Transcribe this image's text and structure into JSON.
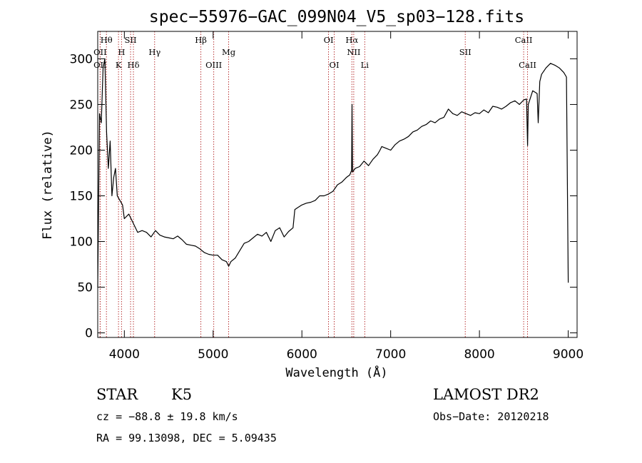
{
  "chart_data": {
    "type": "line",
    "title": "spec−55976−GAC_099N04_V5_sp03−128.fits",
    "xlabel": "Wavelength (Å)",
    "ylabel": "Flux (relative)",
    "xlim": [
      3700,
      9100
    ],
    "ylim": [
      -5,
      330
    ],
    "xticks": [
      "4000",
      "5000",
      "6000",
      "7000",
      "8000",
      "9000"
    ],
    "yticks": [
      "0",
      "50",
      "100",
      "150",
      "200",
      "250",
      "300"
    ],
    "xtick_values": [
      4000,
      5000,
      6000,
      7000,
      8000,
      9000
    ],
    "ytick_values": [
      0,
      50,
      100,
      150,
      200,
      250,
      300
    ],
    "grid": false,
    "series": [
      {
        "x": [
          3700,
          3720,
          3740,
          3760,
          3780,
          3800,
          3820,
          3840,
          3860,
          3880,
          3900,
          3920,
          3950,
          3980,
          4000,
          4050,
          4100,
          4150,
          4200,
          4250,
          4300,
          4350,
          4400,
          4450,
          4500,
          4550,
          4600,
          4650,
          4700,
          4750,
          4800,
          4850,
          4900,
          4950,
          5000,
          5050,
          5100,
          5150,
          5175,
          5200,
          5250,
          5300,
          5350,
          5400,
          5450,
          5500,
          5550,
          5600,
          5650,
          5700,
          5750,
          5800,
          5850,
          5900,
          5920,
          5950,
          6000,
          6050,
          6100,
          6150,
          6200,
          6250,
          6300,
          6350,
          6400,
          6450,
          6500,
          6540,
          6560,
          6565,
          6570,
          6600,
          6650,
          6700,
          6750,
          6800,
          6850,
          6880,
          6900,
          6950,
          7000,
          7050,
          7100,
          7150,
          7200,
          7250,
          7300,
          7350,
          7400,
          7450,
          7500,
          7550,
          7600,
          7650,
          7700,
          7750,
          7800,
          7850,
          7900,
          7950,
          8000,
          8050,
          8100,
          8150,
          8200,
          8250,
          8300,
          8350,
          8400,
          8450,
          8500,
          8530,
          8542,
          8550,
          8600,
          8650,
          8662,
          8680,
          8700,
          8750,
          8800,
          8850,
          8900,
          8950,
          8980,
          9000
        ],
        "y": [
          50,
          240,
          230,
          290,
          300,
          220,
          180,
          210,
          150,
          170,
          180,
          150,
          145,
          140,
          125,
          130,
          120,
          110,
          112,
          110,
          105,
          112,
          107,
          105,
          104,
          103,
          106,
          102,
          97,
          96,
          95,
          92,
          88,
          86,
          85,
          85,
          80,
          78,
          73,
          78,
          82,
          90,
          98,
          100,
          104,
          108,
          106,
          110,
          100,
          112,
          115,
          105,
          111,
          115,
          135,
          137,
          140,
          142,
          143,
          145,
          150,
          150,
          152,
          155,
          162,
          165,
          170,
          173,
          178,
          250,
          176,
          180,
          182,
          188,
          183,
          190,
          195,
          200,
          204,
          202,
          200,
          206,
          210,
          212,
          215,
          220,
          222,
          226,
          228,
          232,
          230,
          234,
          236,
          245,
          240,
          238,
          242,
          240,
          238,
          241,
          240,
          244,
          241,
          248,
          247,
          245,
          248,
          252,
          254,
          250,
          255,
          256,
          205,
          250,
          265,
          262,
          230,
          275,
          283,
          290,
          295,
          293,
          290,
          285,
          280,
          55
        ],
        "color": "#000000"
      }
    ],
    "line_markers": [
      {
        "label": "OΙΙ",
        "wl": 3727,
        "row": 2
      },
      {
        "label": "Hθ",
        "wl": 3798,
        "row": 0
      },
      {
        "label": "OΙΙ",
        "wl": 3727,
        "row": 1
      },
      {
        "label": "H",
        "wl": 3968,
        "row": 1
      },
      {
        "label": "K",
        "wl": 3934,
        "row": 2
      },
      {
        "label": "SΙΙ",
        "wl": 4070,
        "row": 0
      },
      {
        "label": "Hδ",
        "wl": 4102,
        "row": 2
      },
      {
        "label": "Hγ",
        "wl": 4341,
        "row": 1
      },
      {
        "label": "Hβ",
        "wl": 4862,
        "row": 0
      },
      {
        "label": "OΙΙΙ",
        "wl": 5007,
        "row": 2
      },
      {
        "label": "Mg",
        "wl": 5175,
        "row": 1
      },
      {
        "label": "OΙ",
        "wl": 6300,
        "row": 0
      },
      {
        "label": "OΙ",
        "wl": 6364,
        "row": 2
      },
      {
        "label": "Hα",
        "wl": 6563,
        "row": 0
      },
      {
        "label": "NΙΙ",
        "wl": 6584,
        "row": 1
      },
      {
        "label": "Li",
        "wl": 6708,
        "row": 2
      },
      {
        "label": "SΙΙ",
        "wl": 7840,
        "row": 1
      },
      {
        "label": "CaΙΙ",
        "wl": 8498,
        "row": 0
      },
      {
        "label": "CaΙΙ",
        "wl": 8542,
        "row": 2
      }
    ]
  },
  "info": {
    "object_class": "STAR",
    "subclass": "K5",
    "survey": "LAMOST DR2",
    "cz": "cz = −88.8 ± 19.8 km/s",
    "obs_date": "Obs−Date: 20120218",
    "coords": "RA =  99.13098, DEC =   5.09435"
  },
  "colors": {
    "spectrum": "#000000",
    "marker_line": "#b22222",
    "axis": "#000000"
  }
}
